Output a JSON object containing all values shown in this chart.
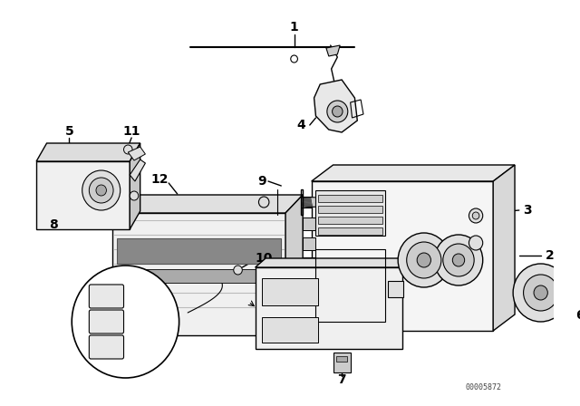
{
  "bg_color": "#ffffff",
  "line_color": "#000000",
  "watermark": "00005872",
  "lw": 1.0
}
